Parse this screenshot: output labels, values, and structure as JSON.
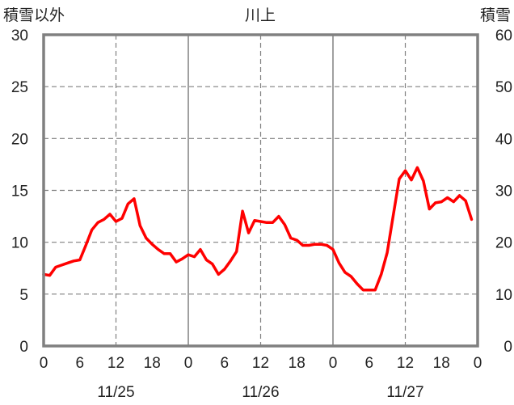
{
  "chart_data": {
    "type": "line",
    "title": "川上",
    "y_left_label": "積雪以外",
    "y_right_label": "積雪",
    "ylim_left": [
      0,
      30
    ],
    "ylim_right": [
      0,
      60
    ],
    "y_left_ticks": [
      "0",
      "5",
      "10",
      "15",
      "20",
      "25",
      "30"
    ],
    "y_right_ticks": [
      "0",
      "10",
      "20",
      "30",
      "40",
      "50",
      "60"
    ],
    "x_hour_ticks": [
      "0",
      "6",
      "12",
      "18",
      "0",
      "6",
      "12",
      "18",
      "0",
      "6",
      "12",
      "18",
      "0"
    ],
    "x_dates": [
      "11/25",
      "11/26",
      "11/27"
    ],
    "xlim_hours": [
      0,
      72
    ],
    "colors": {
      "temperature": "#ff0000",
      "snow_depth": "#7030a0",
      "frame": "#808080",
      "grid": "#808080"
    },
    "series": [
      {
        "axis": "left",
        "color": "#ff0000",
        "x": [
          0,
          1,
          2,
          3,
          4,
          5,
          6,
          7,
          8,
          9,
          10,
          11,
          12,
          13,
          14,
          15,
          16,
          17,
          18,
          19,
          20,
          21,
          22,
          23,
          24,
          25,
          26,
          27,
          28,
          29,
          30,
          31,
          32,
          33,
          34,
          35,
          36,
          37,
          38,
          39,
          40,
          41,
          42,
          43,
          44,
          45,
          46,
          47,
          48,
          49,
          50,
          51,
          52,
          53,
          54,
          55,
          56,
          57,
          58,
          59,
          60,
          61,
          62,
          63,
          64,
          65,
          66,
          67,
          68,
          69,
          70,
          71
        ],
        "values": [
          6.9,
          6.8,
          7.6,
          7.8,
          8.0,
          8.2,
          8.3,
          9.7,
          11.2,
          11.9,
          12.2,
          12.7,
          12.0,
          12.3,
          13.7,
          14.2,
          11.6,
          10.4,
          9.8,
          9.3,
          8.9,
          8.9,
          8.1,
          8.4,
          8.8,
          8.6,
          9.3,
          8.3,
          7.9,
          6.9,
          7.4,
          8.2,
          9.1,
          13.0,
          10.9,
          12.1,
          12.0,
          11.9,
          11.9,
          12.5,
          11.7,
          10.4,
          10.2,
          9.7,
          9.7,
          9.8,
          9.8,
          9.7,
          9.3,
          8.0,
          7.1,
          6.7,
          6.0,
          5.4,
          5.4,
          5.4,
          6.9,
          9.0,
          12.6,
          16.1,
          16.9,
          16.0,
          17.2,
          15.9,
          13.2,
          13.8,
          13.9,
          14.3,
          13.9,
          14.5,
          14.0,
          12.2
        ]
      },
      {
        "axis": "right",
        "color": "#7030a0",
        "x": [
          0,
          72
        ],
        "values": [
          0,
          0
        ]
      }
    ]
  }
}
